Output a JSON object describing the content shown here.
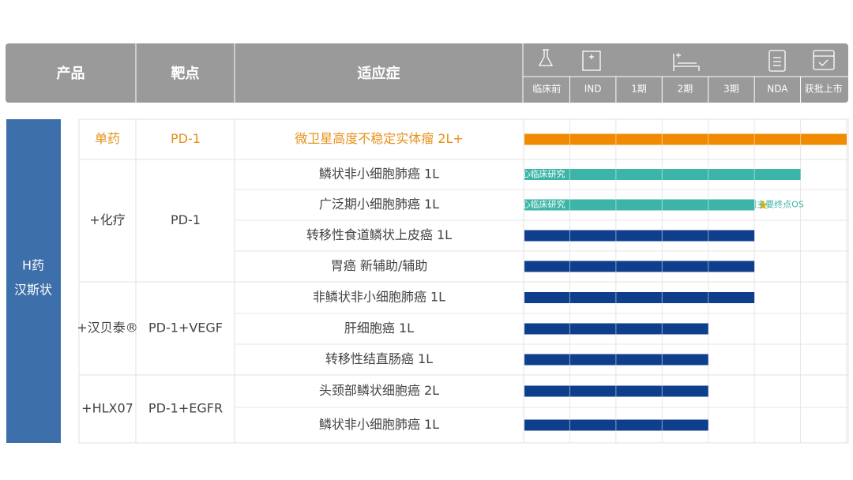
{
  "header": {
    "columns": [
      "产品",
      "靶点",
      "适应症"
    ],
    "stages": [
      "临床前",
      "IND",
      "1期",
      "2期",
      "3期",
      "NDA",
      "获批上市"
    ]
  },
  "drug": {
    "lines": [
      "H药",
      "汉斯状"
    ]
  },
  "groups": [
    {
      "product": "单药",
      "target": "PD-1",
      "indications": [
        {
          "name": "微卫星高度不稳定实体瘤 2L+"
        }
      ]
    },
    {
      "product": "+化疗",
      "target": "PD-1",
      "indications": [
        {
          "name": "鳞状非小细胞肺癌 1L",
          "bar_label": "国际多中心临床研究"
        },
        {
          "name": "广泛期小细胞肺癌 1L",
          "bar_label": "国际多中心临床研究",
          "note": "达到主要终点OS"
        },
        {
          "name": "转移性食道鳞状上皮癌 1L"
        },
        {
          "name": "胃癌 新辅助/辅助"
        }
      ]
    },
    {
      "product": "+汉贝泰®",
      "target": "PD-1+VEGF",
      "indications": [
        {
          "name": "非鳞状非小细胞肺癌 1L"
        },
        {
          "name": "肝细胞癌 1L"
        },
        {
          "name": "转移性结直肠癌 1L"
        }
      ]
    },
    {
      "product": "+HLX07",
      "target": "PD-1+EGFR",
      "indications": [
        {
          "name": "头颈部鳞状细胞癌 2L"
        },
        {
          "name": "鳞状非小细胞肺癌 1L"
        }
      ]
    }
  ]
}
